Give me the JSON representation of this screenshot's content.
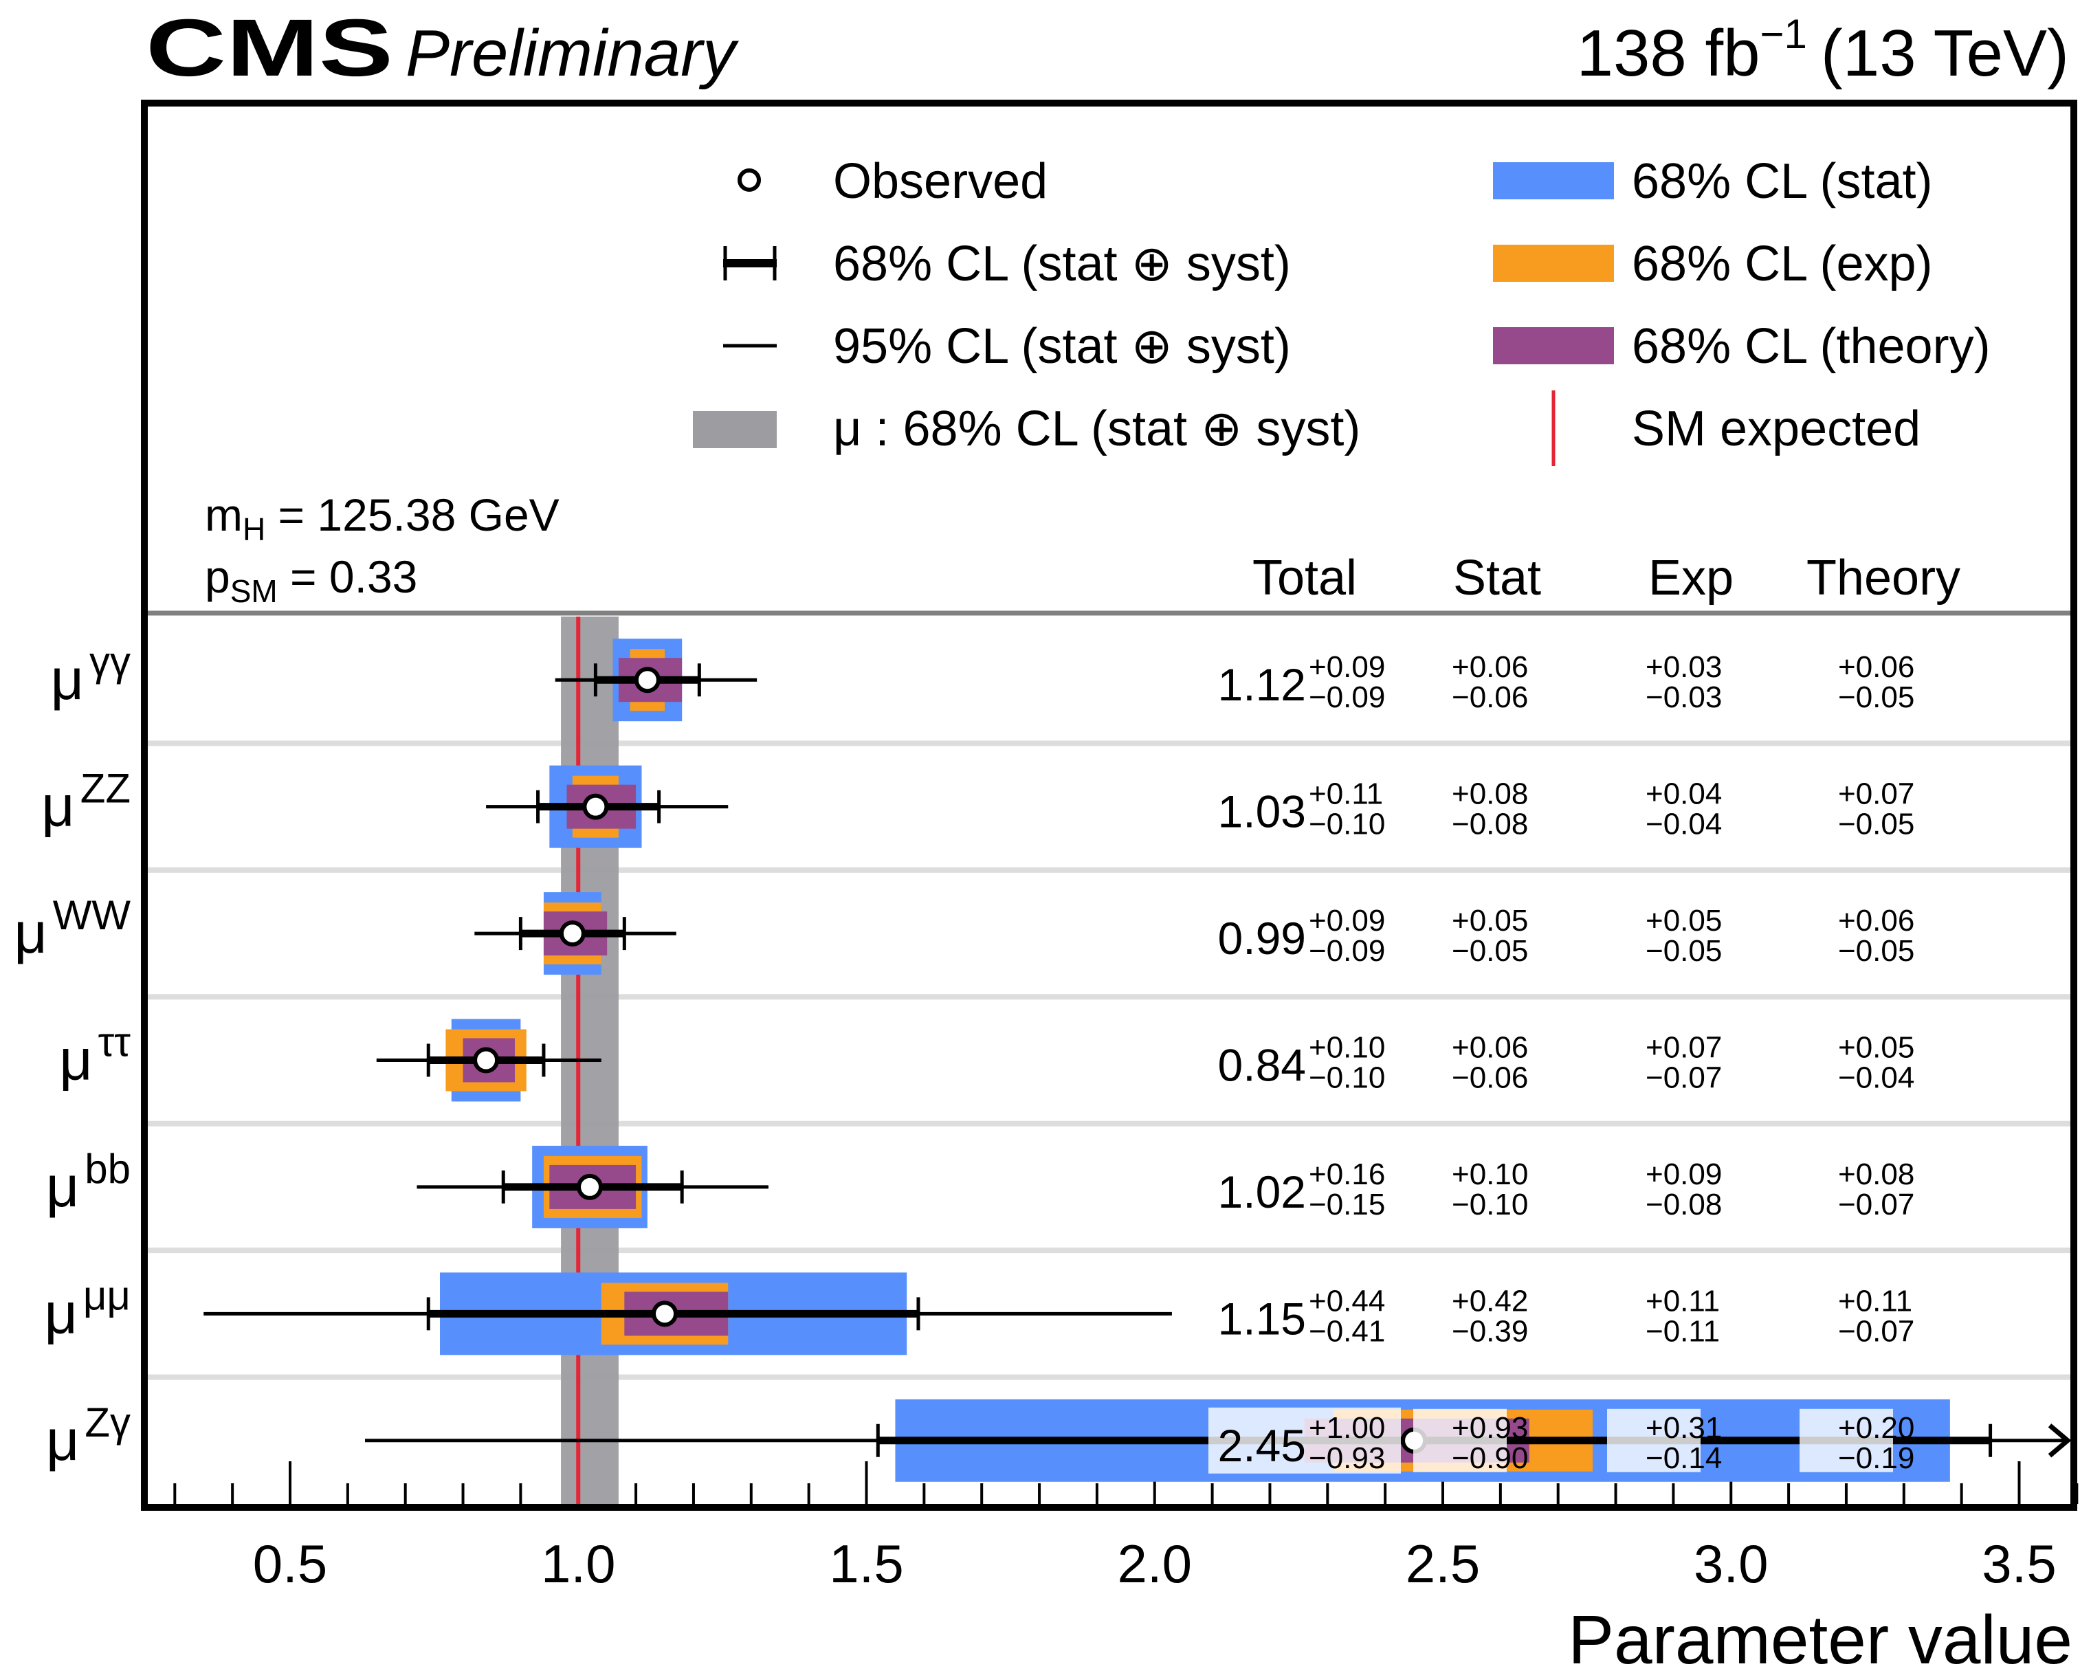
{
  "header": {
    "experiment": "CMS",
    "status": "Preliminary",
    "lumi": "138 fb",
    "lumi_exp": "−1",
    "energy": "(13 TeV)"
  },
  "legend": {
    "left": [
      {
        "label": "Observed",
        "icon": "open-circle-marker"
      },
      {
        "label": "68% CL (stat ⊕ syst)",
        "icon": "thick-errorbar"
      },
      {
        "label": "95% CL (stat ⊕ syst)",
        "icon": "thin-line"
      },
      {
        "label": "μ : 68% CL (stat ⊕ syst)",
        "icon": "gray-box"
      }
    ],
    "right": [
      {
        "label": "68% CL (stat)",
        "icon": "blue-box"
      },
      {
        "label": "68% CL (exp)",
        "icon": "orange-box"
      },
      {
        "label": "68% CL (theory)",
        "icon": "purple-box"
      },
      {
        "label": "SM expected",
        "icon": "red-vertical-line"
      }
    ]
  },
  "info": {
    "mh_label": "m",
    "mh_sub": "H",
    "mh_value": " = 125.38 GeV",
    "psm_label": "p",
    "psm_sub": "SM",
    "psm_value": " = 0.33"
  },
  "table_headers": [
    "Total",
    "Stat",
    "Exp",
    "Theory"
  ],
  "colors": {
    "stat": "#5790fc",
    "exp": "#f89c20",
    "theory": "#964a8b",
    "combined_band": "#9c9ca1",
    "sm_line": "#e42536",
    "row_sep": "#dddddd",
    "header_sep": "#808080"
  },
  "chart_data": {
    "type": "forest",
    "title": "",
    "xlabel": "Parameter value",
    "ylabel": "",
    "xlim": [
      0.263,
      3.61
    ],
    "xticks": [
      0.5,
      1.0,
      1.5,
      2.0,
      2.5,
      3.0,
      3.5
    ],
    "xtick_labels": [
      "0.5",
      "1.0",
      "1.5",
      "2.0",
      "2.5",
      "3.0",
      "3.5"
    ],
    "sm_expected": 1.0,
    "combined_mu_band": [
      0.97,
      1.07
    ],
    "rows": [
      {
        "label": "μ",
        "sup": "γγ",
        "value": 1.12,
        "total": [
          0.09,
          0.09
        ],
        "stat": [
          0.06,
          0.06
        ],
        "exp": [
          0.03,
          0.03
        ],
        "theory": [
          0.06,
          0.05
        ],
        "cl95": [
          0.96,
          1.31
        ],
        "text": {
          "value": "1.12",
          "total_up": "+0.09",
          "total_dn": "−0.09",
          "stat_up": "+0.06",
          "stat_dn": "−0.06",
          "exp_up": "+0.03",
          "exp_dn": "−0.03",
          "th_up": "+0.06",
          "th_dn": "−0.05"
        }
      },
      {
        "label": "μ",
        "sup": "ZZ",
        "value": 1.03,
        "total": [
          0.11,
          0.1
        ],
        "stat": [
          0.08,
          0.08
        ],
        "exp": [
          0.04,
          0.04
        ],
        "theory": [
          0.07,
          0.05
        ],
        "cl95": [
          0.84,
          1.26
        ],
        "text": {
          "value": "1.03",
          "total_up": "+0.11",
          "total_dn": "−0.10",
          "stat_up": "+0.08",
          "stat_dn": "−0.08",
          "exp_up": "+0.04",
          "exp_dn": "−0.04",
          "th_up": "+0.07",
          "th_dn": "−0.05"
        }
      },
      {
        "label": "μ",
        "sup": "WW",
        "value": 0.99,
        "total": [
          0.09,
          0.09
        ],
        "stat": [
          0.05,
          0.05
        ],
        "exp": [
          0.05,
          0.05
        ],
        "theory": [
          0.06,
          0.05
        ],
        "cl95": [
          0.82,
          1.17
        ],
        "text": {
          "value": "0.99",
          "total_up": "+0.09",
          "total_dn": "−0.09",
          "stat_up": "+0.05",
          "stat_dn": "−0.05",
          "exp_up": "+0.05",
          "exp_dn": "−0.05",
          "th_up": "+0.06",
          "th_dn": "−0.05"
        }
      },
      {
        "label": "μ",
        "sup": "ττ",
        "value": 0.84,
        "total": [
          0.1,
          0.1
        ],
        "stat": [
          0.06,
          0.06
        ],
        "exp": [
          0.07,
          0.07
        ],
        "theory": [
          0.05,
          0.04
        ],
        "cl95": [
          0.65,
          1.04
        ],
        "text": {
          "value": "0.84",
          "total_up": "+0.10",
          "total_dn": "−0.10",
          "stat_up": "+0.06",
          "stat_dn": "−0.06",
          "exp_up": "+0.07",
          "exp_dn": "−0.07",
          "th_up": "+0.05",
          "th_dn": "−0.04"
        }
      },
      {
        "label": "μ",
        "sup": "bb",
        "value": 1.02,
        "total": [
          0.16,
          0.15
        ],
        "stat": [
          0.1,
          0.1
        ],
        "exp": [
          0.09,
          0.08
        ],
        "theory": [
          0.08,
          0.07
        ],
        "cl95": [
          0.72,
          1.33
        ],
        "text": {
          "value": "1.02",
          "total_up": "+0.16",
          "total_dn": "−0.15",
          "stat_up": "+0.10",
          "stat_dn": "−0.10",
          "exp_up": "+0.09",
          "exp_dn": "−0.08",
          "th_up": "+0.08",
          "th_dn": "−0.07"
        }
      },
      {
        "label": "μ",
        "sup": "μμ",
        "value": 1.15,
        "total": [
          0.44,
          0.41
        ],
        "stat": [
          0.42,
          0.39
        ],
        "exp": [
          0.11,
          0.11
        ],
        "theory": [
          0.11,
          0.07
        ],
        "cl95": [
          0.35,
          2.03
        ],
        "text": {
          "value": "1.15",
          "total_up": "+0.44",
          "total_dn": "−0.41",
          "stat_up": "+0.42",
          "stat_dn": "−0.39",
          "exp_up": "+0.11",
          "exp_dn": "−0.11",
          "th_up": "+0.11",
          "th_dn": "−0.07"
        }
      },
      {
        "label": "μ",
        "sup": "Zγ",
        "value": 2.45,
        "total": [
          1.0,
          0.93
        ],
        "stat": [
          0.93,
          0.9
        ],
        "exp": [
          0.31,
          0.14
        ],
        "theory": [
          0.2,
          0.19
        ],
        "cl95": [
          0.63,
          3.61
        ],
        "cl95_arrow": true,
        "text": {
          "value": "2.45",
          "total_up": "+1.00",
          "total_dn": "−0.93",
          "stat_up": "+0.93",
          "stat_dn": "−0.90",
          "exp_up": "+0.31",
          "exp_dn": "−0.14",
          "th_up": "+0.20",
          "th_dn": "−0.19"
        }
      }
    ]
  }
}
